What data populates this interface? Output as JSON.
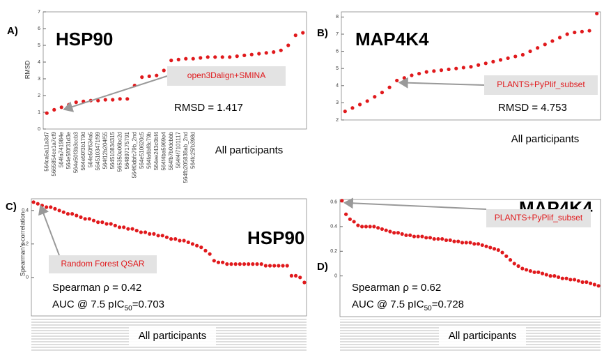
{
  "chart_data": [
    {
      "type": "scatter",
      "panel_label": "A)",
      "title": "HSP90",
      "ylabel": "RMSD",
      "categories": [
        "564ca5a11a3d7",
        "5665854ce1a7cf9",
        "564fa741984e",
        "564e5f0f31d3e",
        "564e50f3b3ccb3",
        "564e50f3b179d",
        "564e50f634a5",
        "5645103471f99",
        "564f12b204f55",
        "564510834315",
        "565350e06bc2d",
        "564897175791",
        "564f0dbfc79b_2nd",
        "564e510620c5",
        "564fa6bf8c79b",
        "564ee243c0bf4",
        "564f4ba5969e4",
        "564fb7b0dcbbb",
        "564f4f7101117",
        "564fb205838ab_2nd",
        "564fc25fb398d",
        null,
        null,
        null,
        null,
        null,
        null,
        null,
        null,
        null,
        null,
        null,
        null,
        null,
        null,
        null
      ],
      "values": [
        0.95,
        1.15,
        1.3,
        1.45,
        1.6,
        1.65,
        1.7,
        1.7,
        1.75,
        1.75,
        1.8,
        1.8,
        2.6,
        3.1,
        3.15,
        3.2,
        3.5,
        4.1,
        4.15,
        4.2,
        4.2,
        4.25,
        4.3,
        4.3,
        4.3,
        4.3,
        4.35,
        4.4,
        4.45,
        4.5,
        4.55,
        4.6,
        4.7,
        5.0,
        5.6,
        5.75
      ],
      "color": "#e0191c",
      "ylim": [
        0,
        7
      ],
      "yticks": [
        0,
        1,
        2,
        3,
        4,
        5,
        6,
        7
      ],
      "callout": "open3Dalign+SMINA",
      "metrics": [
        "RMSD = 1.417"
      ],
      "xlabel": "All participants"
    },
    {
      "type": "scatter",
      "panel_label": "B)",
      "title": "MAP4K4",
      "values": [
        2.5,
        2.7,
        2.9,
        3.1,
        3.35,
        3.6,
        3.9,
        4.3,
        4.45,
        4.6,
        4.7,
        4.8,
        4.85,
        4.9,
        4.95,
        5.0,
        5.05,
        5.1,
        5.2,
        5.3,
        5.4,
        5.5,
        5.6,
        5.7,
        5.8,
        6.0,
        6.2,
        6.4,
        6.6,
        6.8,
        7.0,
        7.1,
        7.15,
        7.2,
        8.2
      ],
      "color": "#e0191c",
      "ylim": [
        2,
        8.3
      ],
      "yticks": [
        2,
        3,
        4,
        5,
        6,
        7,
        8
      ],
      "callout": "PLANTS+PyPlif_subset",
      "metrics": [
        "RMSD = 4.753"
      ],
      "xlabel": "All participants"
    },
    {
      "type": "scatter",
      "panel_label": "C)",
      "title": "HSP90",
      "ylabel": "Spearman’s correlation",
      "values": [
        0.45,
        0.44,
        0.43,
        0.42,
        0.42,
        0.41,
        0.4,
        0.39,
        0.38,
        0.38,
        0.37,
        0.36,
        0.35,
        0.35,
        0.34,
        0.33,
        0.33,
        0.32,
        0.32,
        0.31,
        0.3,
        0.3,
        0.29,
        0.29,
        0.28,
        0.27,
        0.27,
        0.26,
        0.26,
        0.25,
        0.25,
        0.24,
        0.23,
        0.23,
        0.22,
        0.22,
        0.21,
        0.2,
        0.19,
        0.18,
        0.16,
        0.14,
        0.1,
        0.09,
        0.09,
        0.08,
        0.08,
        0.08,
        0.08,
        0.08,
        0.08,
        0.08,
        0.08,
        0.08,
        0.07,
        0.07,
        0.07,
        0.07,
        0.07,
        0.07,
        0.01,
        0.01,
        0.0,
        -0.03
      ],
      "color": "#e0191c",
      "ylim": [
        -0.23,
        0.47
      ],
      "yticks": [
        0.0,
        0.2,
        0.4
      ],
      "callout": "Random Forest QSAR",
      "metrics": [
        "Spearman ρ = 0.42",
        [
          "AUC @ 7.5 pIC",
          "50",
          "=0.703"
        ]
      ],
      "xlabel": "All participants"
    },
    {
      "type": "scatter",
      "panel_label": "D)",
      "title": "MAP4K4",
      "values": [
        0.61,
        0.5,
        0.46,
        0.44,
        0.41,
        0.4,
        0.4,
        0.4,
        0.4,
        0.39,
        0.38,
        0.37,
        0.36,
        0.35,
        0.35,
        0.34,
        0.33,
        0.33,
        0.32,
        0.32,
        0.32,
        0.31,
        0.31,
        0.3,
        0.3,
        0.3,
        0.29,
        0.29,
        0.28,
        0.28,
        0.27,
        0.27,
        0.27,
        0.26,
        0.26,
        0.25,
        0.24,
        0.23,
        0.22,
        0.21,
        0.19,
        0.16,
        0.13,
        0.1,
        0.08,
        0.06,
        0.05,
        0.04,
        0.03,
        0.03,
        0.02,
        0.01,
        0.0,
        0.0,
        -0.01,
        -0.02,
        -0.02,
        -0.03,
        -0.03,
        -0.04,
        -0.05,
        -0.05,
        -0.06,
        -0.07,
        -0.08
      ],
      "color": "#e0191c",
      "ylim": [
        -0.33,
        0.62
      ],
      "yticks": [
        0.0,
        0.2,
        0.4,
        0.6
      ],
      "callout": "PLANTS+PyPlif_subset",
      "metrics": [
        "Spearman ρ = 0.62",
        [
          "AUC @ 7.5 pIC",
          "50",
          "=0.728"
        ]
      ],
      "xlabel": "All participants"
    }
  ]
}
